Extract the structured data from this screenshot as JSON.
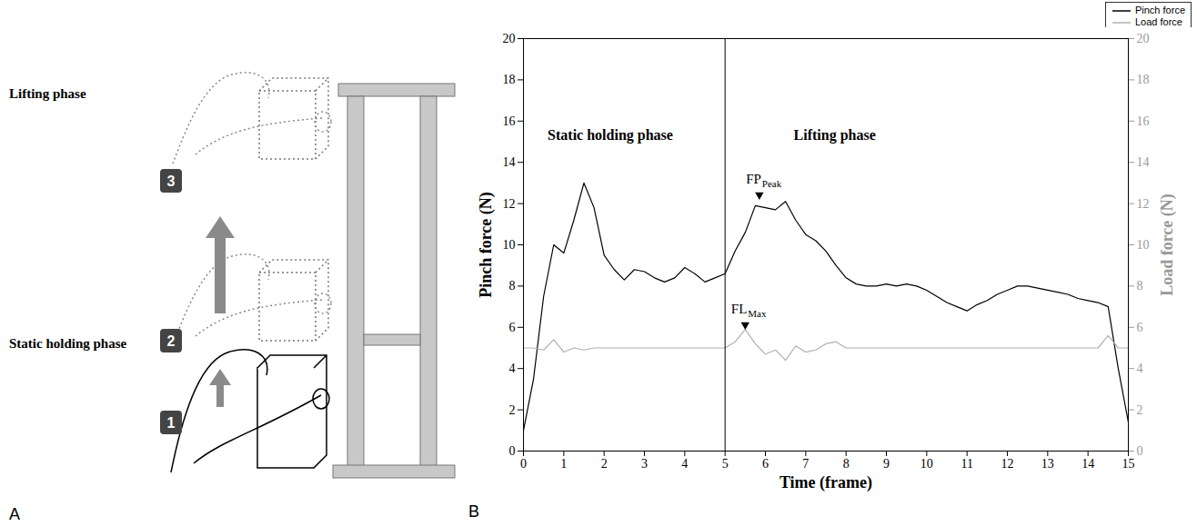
{
  "chart_data": {
    "type": "line",
    "panel_label": "B",
    "x_label": "Time (frame)",
    "y_label": "Pinch force (N)",
    "y2_label": "Load force (N)",
    "xlim": [
      0,
      15
    ],
    "xticks": [
      0,
      1,
      2,
      3,
      4,
      5,
      6,
      7,
      8,
      9,
      10,
      11,
      12,
      13,
      14,
      15
    ],
    "ylim": [
      0,
      20
    ],
    "yticks": [
      0,
      2,
      4,
      6,
      8,
      10,
      12,
      14,
      16,
      18,
      20
    ],
    "y2lim": [
      0,
      20
    ],
    "y2ticks": [
      0,
      2,
      4,
      6,
      8,
      10,
      12,
      14,
      16,
      18,
      20
    ],
    "legend": "top-right",
    "phase_boundary": 5,
    "phase_labels": [
      {
        "text": "Static holding phase",
        "x": 0.6,
        "y": 15.3
      },
      {
        "text": "Lifting phase",
        "x": 6.7,
        "y": 15.3
      }
    ],
    "annotations": [
      {
        "text": "FP",
        "sub": "Peak",
        "x": 5.85,
        "y": 12.2
      },
      {
        "text": "FL",
        "sub": "Max",
        "x": 5.5,
        "y": 5.9
      }
    ],
    "x": [
      0,
      0.25,
      0.5,
      0.75,
      1,
      1.25,
      1.5,
      1.75,
      2,
      2.25,
      2.5,
      2.75,
      3,
      3.25,
      3.5,
      3.75,
      4,
      4.25,
      4.5,
      4.75,
      5,
      5.25,
      5.5,
      5.75,
      6,
      6.25,
      6.5,
      6.75,
      7,
      7.25,
      7.5,
      7.75,
      8,
      8.25,
      8.5,
      8.75,
      9,
      9.25,
      9.5,
      9.75,
      10,
      10.25,
      10.5,
      10.75,
      11,
      11.25,
      11.5,
      11.75,
      12,
      12.25,
      12.5,
      12.75,
      13,
      13.25,
      13.5,
      13.75,
      14,
      14.25,
      14.5,
      14.75,
      15
    ],
    "series": [
      {
        "name": "Pinch force",
        "color": "#000000",
        "line_style": "solid",
        "values": [
          1.0,
          3.5,
          7.5,
          10.0,
          9.6,
          11.2,
          13.0,
          11.8,
          9.5,
          8.8,
          8.3,
          8.8,
          8.7,
          8.4,
          8.2,
          8.4,
          8.9,
          8.6,
          8.2,
          8.4,
          8.6,
          9.7,
          10.6,
          11.9,
          11.8,
          11.7,
          12.1,
          11.2,
          10.5,
          10.2,
          9.7,
          9.0,
          8.4,
          8.1,
          8.0,
          8.0,
          8.1,
          8.0,
          8.1,
          8.0,
          7.8,
          7.5,
          7.2,
          7.0,
          6.8,
          7.1,
          7.3,
          7.6,
          7.8,
          8.0,
          8.0,
          7.9,
          7.8,
          7.7,
          7.6,
          7.4,
          7.3,
          7.2,
          7.0,
          4.0,
          1.4
        ]
      },
      {
        "name": "Load force",
        "color": "#b0b0b0",
        "line_style": "solid",
        "axis": "y2",
        "values": [
          5.0,
          5.0,
          4.9,
          5.4,
          4.8,
          5.0,
          4.9,
          5.0,
          5.0,
          5.0,
          5.0,
          5.0,
          5.0,
          5.0,
          5.0,
          5.0,
          5.0,
          5.0,
          5.0,
          5.0,
          5.0,
          5.3,
          5.9,
          5.2,
          4.7,
          4.9,
          4.4,
          5.1,
          4.8,
          4.9,
          5.2,
          5.3,
          5.0,
          5.0,
          5.0,
          5.0,
          5.0,
          5.0,
          5.0,
          5.0,
          5.0,
          5.0,
          5.0,
          5.0,
          5.0,
          5.0,
          5.0,
          5.0,
          5.0,
          5.0,
          5.0,
          5.0,
          5.0,
          5.0,
          5.0,
          5.0,
          5.0,
          5.0,
          5.6,
          5.0,
          5.0
        ]
      }
    ]
  },
  "diagram": {
    "panel_label": "A",
    "phases": [
      {
        "text": "Lifting phase"
      },
      {
        "text": "Static holding phase"
      }
    ],
    "steps": [
      "3",
      "2",
      "1"
    ]
  }
}
